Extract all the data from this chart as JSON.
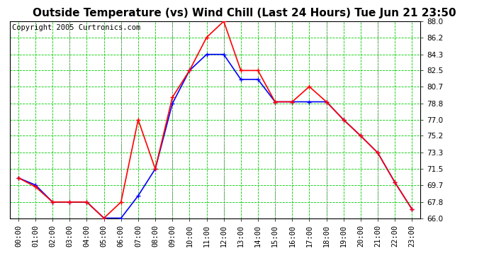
{
  "title": "Outside Temperature (vs) Wind Chill (Last 24 Hours) Tue Jun 21 23:50",
  "copyright": "Copyright 2005 Curtronics.com",
  "hours": [
    "00:00",
    "01:00",
    "02:00",
    "03:00",
    "04:00",
    "05:00",
    "06:00",
    "07:00",
    "08:00",
    "09:00",
    "10:00",
    "11:00",
    "12:00",
    "13:00",
    "14:00",
    "15:00",
    "16:00",
    "17:00",
    "18:00",
    "19:00",
    "20:00",
    "21:00",
    "22:00",
    "23:00"
  ],
  "outside_temp": [
    70.5,
    69.7,
    67.8,
    67.8,
    67.8,
    66.0,
    66.0,
    68.5,
    71.5,
    78.8,
    82.5,
    84.3,
    84.3,
    81.5,
    81.5,
    79.0,
    79.0,
    79.0,
    79.0,
    77.0,
    75.2,
    73.3,
    70.0,
    67.0
  ],
  "wind_chill": [
    70.5,
    69.5,
    67.8,
    67.8,
    67.8,
    66.0,
    67.8,
    77.0,
    71.5,
    79.5,
    82.5,
    86.2,
    88.0,
    82.5,
    82.5,
    79.0,
    79.0,
    80.7,
    79.0,
    77.0,
    75.2,
    73.3,
    70.0,
    67.0
  ],
  "temp_color": "#0000ff",
  "wind_color": "#ff0000",
  "bg_color": "#ffffff",
  "plot_bg": "#ffffff",
  "grid_color": "#00cc00",
  "ylim_min": 66.0,
  "ylim_max": 88.0,
  "yticks": [
    66.0,
    67.8,
    69.7,
    71.5,
    73.3,
    75.2,
    77.0,
    78.8,
    80.7,
    82.5,
    84.3,
    86.2,
    88.0
  ],
  "title_fontsize": 11,
  "copyright_fontsize": 7.5,
  "tick_fontsize": 7.5,
  "marker_size": 4,
  "linewidth": 1.2
}
